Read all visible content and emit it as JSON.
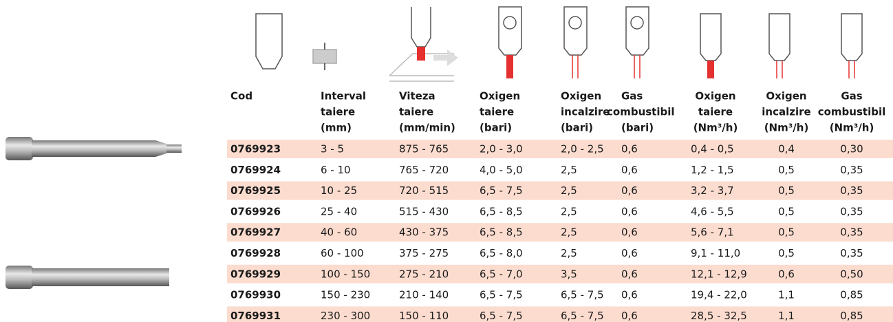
{
  "table": {
    "header": [
      [
        "Cod"
      ],
      [
        "Interval",
        "taiere",
        "(mm)"
      ],
      [
        "Viteza",
        "taiere",
        "(mm/min)"
      ],
      [
        "Oxigen",
        "taiere",
        "(bari)"
      ],
      [
        "Oxigen",
        "incalzire",
        "(bari)"
      ],
      [
        "Gas",
        "combustibil",
        "(bari)"
      ],
      [
        "Oxigen",
        "taiere",
        "(Nm³/h)"
      ],
      [
        "Oxigen",
        "incalzire",
        "(Nm³/h)"
      ],
      [
        "Gas",
        "combustibil",
        "(Nm³/h)"
      ]
    ],
    "rows": [
      [
        "0769923",
        "3 - 5",
        "875 - 765",
        "2,0 - 3,0",
        "2,0 - 2,5",
        "0,6",
        "0,4 - 0,5",
        "0,4",
        "0,30"
      ],
      [
        "0769924",
        "6 - 10",
        "765 - 720",
        "4,0 - 5,0",
        "2,5",
        "0,6",
        "1,2 - 1,5",
        "0,5",
        "0,35"
      ],
      [
        "0769925",
        "10 - 25",
        "720 - 515",
        "6,5 - 7,5",
        "2,5",
        "0,6",
        "3,2 - 3,7",
        "0,5",
        "0,35"
      ],
      [
        "0769926",
        "25 - 40",
        "515 - 430",
        "6,5 - 8,5",
        "2,5",
        "0,6",
        "4,6 - 5,5",
        "0,5",
        "0,35"
      ],
      [
        "0769927",
        "40 - 60",
        "430 - 375",
        "6,5 - 8,5",
        "2,5",
        "0,6",
        "5,6 - 7,1",
        "0,5",
        "0,35"
      ],
      [
        "0769928",
        "60 - 100",
        "375 - 275",
        "6,5 - 8,0",
        "2,5",
        "0,6",
        "9,1 - 11,0",
        "0,5",
        "0,35"
      ],
      [
        "0769929",
        "100 - 150",
        "275 - 210",
        "6,5 - 7,0",
        "3,5",
        "0,6",
        "12,1 - 12,9",
        "0,6",
        "0,50"
      ],
      [
        "0769930",
        "150 - 230",
        "210 - 140",
        "6,5 - 7,5",
        "6,5 - 7,5",
        "0,6",
        "19,4 - 22,0",
        "1,1",
        "0,85"
      ],
      [
        "0769931",
        "230 - 300",
        "150 - 110",
        "6,5 - 7,5",
        "6,5 - 7,5",
        "0,6",
        "28,5 - 32,5",
        "1,1",
        "0,85"
      ]
    ]
  }
}
